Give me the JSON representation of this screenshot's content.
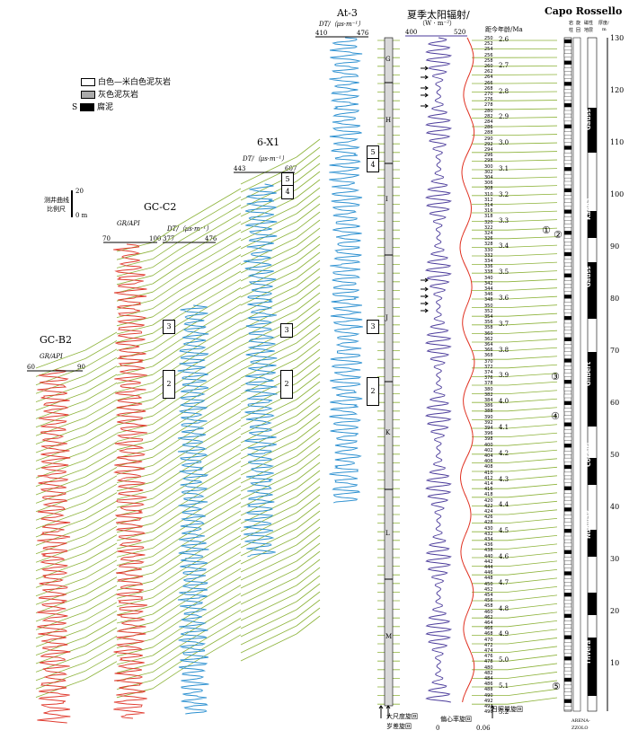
{
  "legend": {
    "white_marl": "白色—米白色泥灰岩",
    "grey_marl": "灰色泥灰岩",
    "sapropel": "腐泥",
    "sapropel_symbol": "S"
  },
  "scale_bar": {
    "label1": "测井曲线",
    "label2": "比例尺",
    "top": "20",
    "bottom": "0 m"
  },
  "wells": {
    "gcb2": {
      "name": "GC-B2",
      "curve": "GR/API",
      "min": "60",
      "max": "90"
    },
    "gcc2": {
      "name": "GC-C2",
      "curve": "GR/API",
      "min": "70",
      "max": "100",
      "curve2": "DT/（μs·m⁻¹）",
      "min2": "377",
      "max2": "476"
    },
    "x1": {
      "name": "6-X1",
      "curve": "DT/（μs·m⁻¹）",
      "min": "443",
      "max": "607"
    },
    "at3": {
      "name": "At-3",
      "curve": "DT/（μs·m⁻¹）",
      "min": "410",
      "max": "476"
    }
  },
  "insolation": {
    "title": "夏季太阳辐射/",
    "unit": "（W · m⁻²）",
    "min": "400",
    "max": "520"
  },
  "age_axis": {
    "title": "距今年龄/Ma",
    "ticks": [
      "2.6",
      "2.7",
      "2.8",
      "2.9",
      "3.0",
      "3.1",
      "3.2",
      "3.3",
      "3.4",
      "3.5",
      "3.6",
      "3.7",
      "3.8",
      "3.9",
      "4.0",
      "4.1",
      "4.2",
      "4.3",
      "4.4",
      "4.5",
      "4.6",
      "4.7",
      "4.8",
      "4.9",
      "5.0",
      "5.1",
      "5.2"
    ]
  },
  "cycle_numbers": [
    "250",
    "252",
    "254",
    "256",
    "258",
    "260",
    "262",
    "264",
    "266",
    "268",
    "270",
    "276",
    "278",
    "280",
    "282",
    "284",
    "286",
    "288",
    "290",
    "292",
    "294",
    "296",
    "298",
    "300",
    "302",
    "304",
    "306",
    "308",
    "310",
    "312",
    "314",
    "316",
    "318",
    "320",
    "322",
    "324",
    "326",
    "328",
    "330",
    "332",
    "334",
    "336",
    "338",
    "340",
    "342",
    "344",
    "346",
    "348",
    "350",
    "352",
    "354",
    "356",
    "358",
    "360",
    "362",
    "364",
    "366",
    "368",
    "370",
    "372",
    "374",
    "376",
    "378",
    "380",
    "382",
    "384",
    "386",
    "388",
    "390",
    "392",
    "394",
    "396",
    "398",
    "400",
    "402",
    "404",
    "406",
    "408",
    "410",
    "412",
    "414",
    "416",
    "418",
    "420",
    "422",
    "424",
    "426",
    "428",
    "430",
    "432",
    "434",
    "436",
    "438",
    "440",
    "442",
    "444",
    "446",
    "448",
    "450",
    "452",
    "454",
    "456",
    "458",
    "460",
    "462",
    "464",
    "466",
    "468",
    "470",
    "472",
    "474",
    "476",
    "478",
    "480",
    "482",
    "484",
    "486",
    "488",
    "490",
    "492",
    "494",
    "496"
  ],
  "section": {
    "title": "Capo Rossello",
    "col_lith": "岩",
    "col_lith2": "柱",
    "col_mag": "旋",
    "col_mag2": "回",
    "col_mag3": "磁性",
    "col_mag4": "地层",
    "col_thk": "厚度/",
    "col_thk2": "m",
    "depth_ticks": [
      "130",
      "120",
      "110",
      "100",
      "90",
      "80",
      "70",
      "60",
      "50",
      "40",
      "30",
      "20",
      "10"
    ],
    "polarity_labels": [
      "Gauss",
      "Kaena",
      "Gauss",
      "Gilbert",
      "Cochiti",
      "Nunivak",
      "Thvera"
    ],
    "base_label1": "ARENA-",
    "base_label2": "ZZOLO",
    "circle_labels": [
      "①",
      "②",
      "③",
      "④",
      "⑤"
    ]
  },
  "large_scale_letters": [
    "G",
    "H",
    "I",
    "J",
    "K",
    "L",
    "M"
  ],
  "bottom_notes": {
    "big_cycle": "大尺度旋回",
    "sub_cycle": "岁差旋回",
    "ecc": "偏心率旋回",
    "ecc_min": "0",
    "ecc_max": "0.06",
    "insol_cycle": "日照量旋回"
  },
  "marker_boxes": [
    "3",
    "2",
    "3",
    "2",
    "3",
    "2",
    "5",
    "4",
    "5",
    "4"
  ],
  "colors": {
    "green": "#8db33a",
    "red": "#e03a2e",
    "blue": "#2a8fd0",
    "purple": "#4a3a9a",
    "ecc_red": "#e03020"
  }
}
